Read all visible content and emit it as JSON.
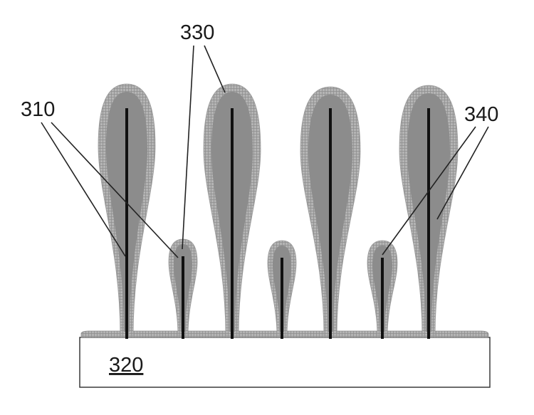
{
  "figure": {
    "labels": {
      "nanowire": "310",
      "substrate": "320",
      "inner_coating": "330",
      "outer_coating": "340"
    },
    "colors": {
      "background": "#ffffff",
      "substrate_fill": "#ffffff",
      "outline": "#3a3a3a",
      "inner_layer": "#8c8c8c",
      "outer_layer": "#b4b4b4",
      "grid_line": "#8e8e8e",
      "wire": "#111111",
      "leader": "#222222"
    },
    "structures": [
      {
        "id": "tall-1",
        "size": "tall"
      },
      {
        "id": "short-1",
        "size": "short"
      },
      {
        "id": "tall-2",
        "size": "tall"
      },
      {
        "id": "short-2",
        "size": "short"
      },
      {
        "id": "tall-3",
        "size": "tall"
      },
      {
        "id": "short-3",
        "size": "short"
      },
      {
        "id": "tall-4",
        "size": "tall"
      }
    ]
  }
}
